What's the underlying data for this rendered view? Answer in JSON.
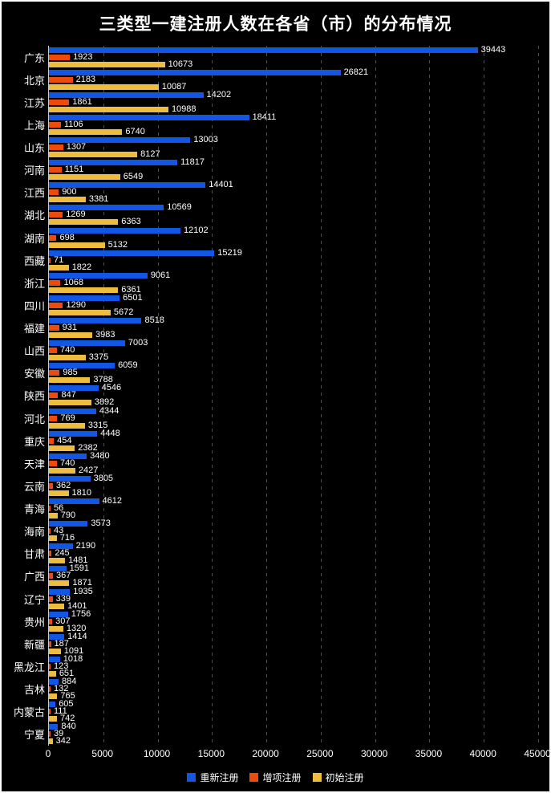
{
  "title": "三类型一建注册人数在各省（市）的分布情况",
  "colors": {
    "background": "#000000",
    "text": "#ffffff",
    "grid": "#4e4e4e",
    "axis_line": "#c9c9c9"
  },
  "chart_data": {
    "type": "bar",
    "orientation": "horizontal",
    "title": "三类型一建注册人数在各省（市）的分布情况",
    "xlabel": "",
    "ylabel": "",
    "xlim": [
      0,
      45000
    ],
    "x_ticks": [
      0,
      5000,
      10000,
      15000,
      20000,
      25000,
      30000,
      35000,
      40000,
      45000
    ],
    "grid": "dashed-vertical",
    "legend_position": "bottom-center",
    "categories": [
      "广东",
      "北京",
      "江苏",
      "上海",
      "山东",
      "河南",
      "江西",
      "湖北",
      "湖南",
      "西藏",
      "浙江",
      "四川",
      "福建",
      "山西",
      "安徽",
      "陕西",
      "河北",
      "重庆",
      "天津",
      "云南",
      "青海",
      "海南",
      "甘肃",
      "广西",
      "辽宁",
      "贵州",
      "新疆",
      "黑龙江",
      "吉林",
      "内蒙古",
      "宁夏"
    ],
    "series": [
      {
        "name": "重新注册",
        "color": "#1157e4",
        "values": [
          39443,
          26821,
          14202,
          18411,
          13003,
          11817,
          14401,
          10569,
          12102,
          15219,
          9061,
          6501,
          8518,
          7003,
          6059,
          4546,
          4344,
          4448,
          3480,
          3805,
          4612,
          3573,
          2190,
          1591,
          1935,
          1756,
          1414,
          1018,
          884,
          605,
          840
        ]
      },
      {
        "name": "增项注册",
        "color": "#ed4a0d",
        "values": [
          1923,
          2183,
          1861,
          1106,
          1307,
          1151,
          900,
          1269,
          698,
          71,
          1068,
          1290,
          931,
          740,
          985,
          847,
          769,
          454,
          740,
          362,
          56,
          43,
          245,
          367,
          339,
          307,
          187,
          123,
          132,
          111,
          39
        ]
      },
      {
        "name": "初始注册",
        "color": "#eebc3e",
        "values": [
          10673,
          10087,
          10988,
          6740,
          8127,
          6549,
          3381,
          6363,
          5132,
          1822,
          6361,
          5672,
          3983,
          3375,
          3788,
          3892,
          3315,
          2382,
          2427,
          1810,
          790,
          716,
          1481,
          1871,
          1401,
          1320,
          1091,
          651,
          765,
          742,
          342
        ]
      }
    ]
  }
}
